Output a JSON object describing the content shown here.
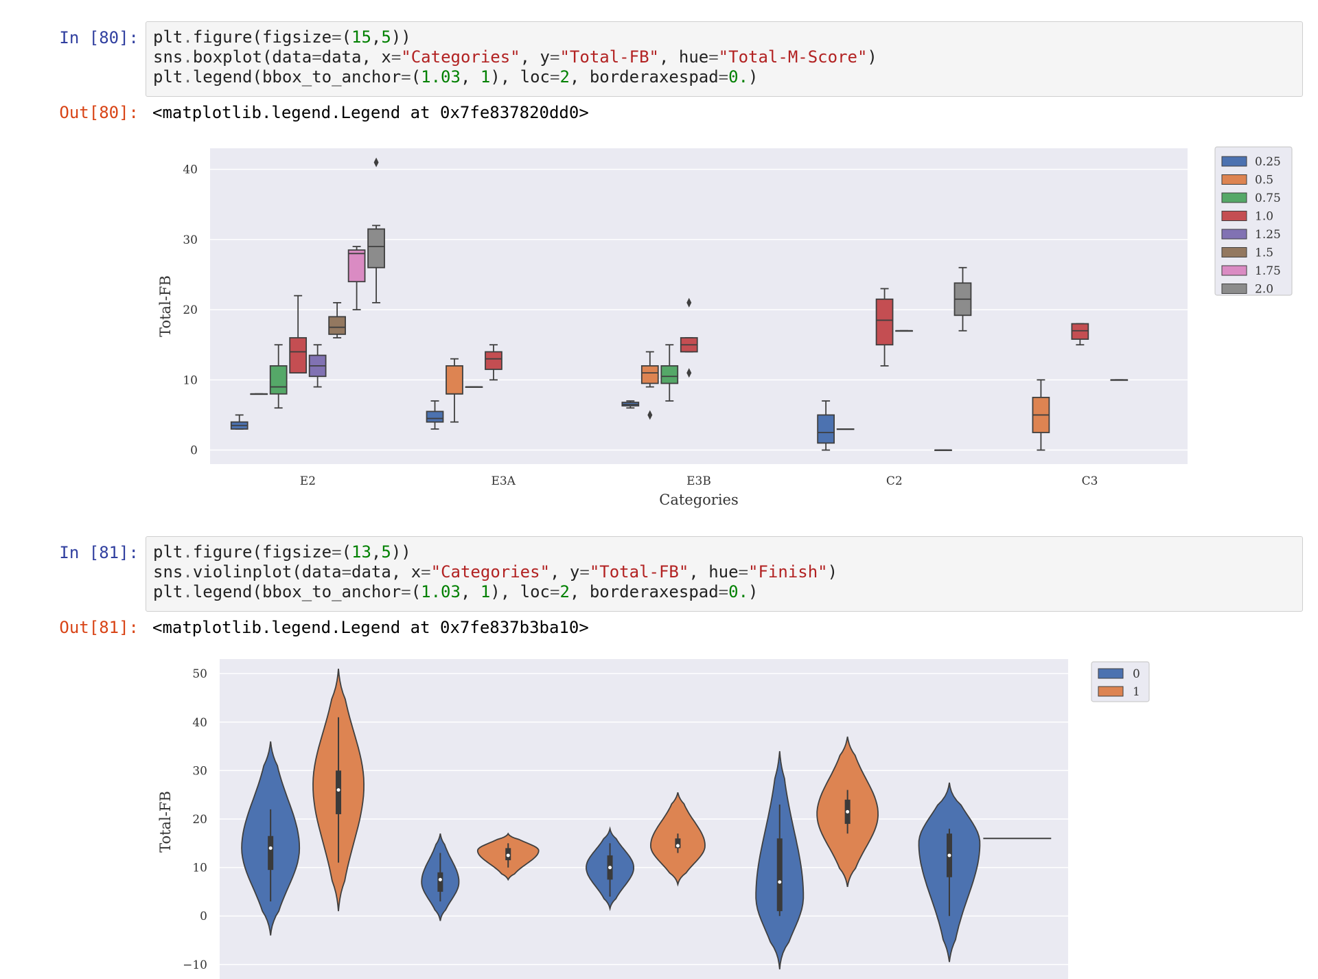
{
  "cells": [
    {
      "in_prompt": "In [80]:",
      "code_lines": [
        [
          [
            "plt",
            "p"
          ],
          [
            ".",
            "o"
          ],
          [
            "figure(figsize",
            "p"
          ],
          [
            "=",
            "o"
          ],
          [
            "(",
            "p"
          ],
          [
            "15",
            "n"
          ],
          [
            ",",
            "p"
          ],
          [
            "5",
            "n"
          ],
          [
            "))",
            "p"
          ]
        ],
        [
          [
            "sns",
            "p"
          ],
          [
            ".",
            "o"
          ],
          [
            "boxplot(data",
            "p"
          ],
          [
            "=",
            "o"
          ],
          [
            "data, x",
            "p"
          ],
          [
            "=",
            "o"
          ],
          [
            "\"Categories\"",
            "s"
          ],
          [
            ", y",
            "p"
          ],
          [
            "=",
            "o"
          ],
          [
            "\"Total-FB\"",
            "s"
          ],
          [
            ", hue",
            "p"
          ],
          [
            "=",
            "o"
          ],
          [
            "\"Total-M-Score\"",
            "s"
          ],
          [
            ")",
            "p"
          ]
        ],
        [
          [
            "plt",
            "p"
          ],
          [
            ".",
            "o"
          ],
          [
            "legend(bbox_to_anchor",
            "p"
          ],
          [
            "=",
            "o"
          ],
          [
            "(",
            "p"
          ],
          [
            "1.03",
            "n"
          ],
          [
            ", ",
            "p"
          ],
          [
            "1",
            "n"
          ],
          [
            "), loc",
            "p"
          ],
          [
            "=",
            "o"
          ],
          [
            "2",
            "n"
          ],
          [
            ", borderaxespad",
            "p"
          ],
          [
            "=",
            "o"
          ],
          [
            "0.",
            "n"
          ],
          [
            ")",
            "p"
          ]
        ]
      ],
      "out_prompt": "Out[80]:",
      "out_text": "<matplotlib.legend.Legend at 0x7fe837820dd0>"
    },
    {
      "in_prompt": "In [81]:",
      "code_lines": [
        [
          [
            "plt",
            "p"
          ],
          [
            ".",
            "o"
          ],
          [
            "figure(figsize",
            "p"
          ],
          [
            "=",
            "o"
          ],
          [
            "(",
            "p"
          ],
          [
            "13",
            "n"
          ],
          [
            ",",
            "p"
          ],
          [
            "5",
            "n"
          ],
          [
            "))",
            "p"
          ]
        ],
        [
          [
            "sns",
            "p"
          ],
          [
            ".",
            "o"
          ],
          [
            "violinplot(data",
            "p"
          ],
          [
            "=",
            "o"
          ],
          [
            "data, x",
            "p"
          ],
          [
            "=",
            "o"
          ],
          [
            "\"Categories\"",
            "s"
          ],
          [
            ", y",
            "p"
          ],
          [
            "=",
            "o"
          ],
          [
            "\"Total-FB\"",
            "s"
          ],
          [
            ", hue",
            "p"
          ],
          [
            "=",
            "o"
          ],
          [
            "\"Finish\"",
            "s"
          ],
          [
            ")",
            "p"
          ]
        ],
        [
          [
            "plt",
            "p"
          ],
          [
            ".",
            "o"
          ],
          [
            "legend(bbox_to_anchor",
            "p"
          ],
          [
            "=",
            "o"
          ],
          [
            "(",
            "p"
          ],
          [
            "1.03",
            "n"
          ],
          [
            ", ",
            "p"
          ],
          [
            "1",
            "n"
          ],
          [
            "), loc",
            "p"
          ],
          [
            "=",
            "o"
          ],
          [
            "2",
            "n"
          ],
          [
            ", borderaxespad",
            "p"
          ],
          [
            "=",
            "o"
          ],
          [
            "0.",
            "n"
          ],
          [
            ")",
            "p"
          ]
        ]
      ],
      "out_prompt": "Out[81]:",
      "out_text": "<matplotlib.legend.Legend at 0x7fe837b3ba10>"
    }
  ],
  "colors": {
    "axes_bg": "#eaeaf2",
    "grid": "#ffffff",
    "edge": "#3f3f3f"
  },
  "chart_data": [
    {
      "type": "box",
      "xlabel": "Categories",
      "ylabel": "Total-FB",
      "ylim": [
        -2,
        43
      ],
      "yticks": [
        0,
        10,
        20,
        30,
        40
      ],
      "categories": [
        "E2",
        "E3A",
        "E3B",
        "C2",
        "C3"
      ],
      "legend_placement": "outside-top-right",
      "grid": true,
      "series": [
        {
          "name": "0.25",
          "color": "#4c72b0",
          "boxes": [
            {
              "cat": "E2",
              "min": 3,
              "q1": 3,
              "median": 3.5,
              "q3": 4,
              "max": 5,
              "outliers": []
            },
            {
              "cat": "E3A",
              "min": 3,
              "q1": 4,
              "median": 4.5,
              "q3": 5.5,
              "max": 7,
              "outliers": []
            },
            {
              "cat": "E3B",
              "min": 6,
              "q1": 6.3,
              "median": 6.5,
              "q3": 6.8,
              "max": 7,
              "outliers": []
            },
            {
              "cat": "C2",
              "min": 0,
              "q1": 1,
              "median": 2.5,
              "q3": 5,
              "max": 7,
              "outliers": []
            }
          ]
        },
        {
          "name": "0.5",
          "color": "#dd8452",
          "boxes": [
            {
              "cat": "E2",
              "min": 8,
              "q1": 8,
              "median": 8,
              "q3": 8,
              "max": 8,
              "outliers": []
            },
            {
              "cat": "E3A",
              "min": 4,
              "q1": 8,
              "median": 8,
              "q3": 12,
              "max": 13,
              "outliers": []
            },
            {
              "cat": "E3B",
              "min": 9,
              "q1": 9.5,
              "median": 11,
              "q3": 12,
              "max": 14,
              "outliers": [
                5
              ]
            },
            {
              "cat": "C2",
              "min": 3,
              "q1": 3,
              "median": 3,
              "q3": 3,
              "max": 3,
              "outliers": []
            },
            {
              "cat": "C3",
              "min": 0,
              "q1": 2.5,
              "median": 5,
              "q3": 7.5,
              "max": 10,
              "outliers": []
            }
          ]
        },
        {
          "name": "0.75",
          "color": "#55a868",
          "boxes": [
            {
              "cat": "E2",
              "min": 6,
              "q1": 8,
              "median": 9,
              "q3": 12,
              "max": 15,
              "outliers": []
            },
            {
              "cat": "E3A",
              "min": 9,
              "q1": 9,
              "median": 9,
              "q3": 9,
              "max": 9,
              "outliers": []
            },
            {
              "cat": "E3B",
              "min": 7,
              "q1": 9.5,
              "median": 10.5,
              "q3": 12,
              "max": 15,
              "outliers": []
            }
          ]
        },
        {
          "name": "1.0",
          "color": "#c44e52",
          "boxes": [
            {
              "cat": "E2",
              "min": 11,
              "q1": 11,
              "median": 14,
              "q3": 16,
              "max": 22,
              "outliers": []
            },
            {
              "cat": "E3A",
              "min": 10,
              "q1": 11.5,
              "median": 13,
              "q3": 14,
              "max": 15,
              "outliers": []
            },
            {
              "cat": "E3B",
              "min": 14,
              "q1": 14,
              "median": 15,
              "q3": 16,
              "max": 16,
              "outliers": [
                11,
                21
              ]
            },
            {
              "cat": "C2",
              "min": 12,
              "q1": 15,
              "median": 18.5,
              "q3": 21.5,
              "max": 23,
              "outliers": []
            },
            {
              "cat": "C3",
              "min": 15,
              "q1": 15.8,
              "median": 17,
              "q3": 18,
              "max": 18,
              "outliers": []
            }
          ]
        },
        {
          "name": "1.25",
          "color": "#8172b3",
          "boxes": [
            {
              "cat": "E2",
              "min": 9,
              "q1": 10.5,
              "median": 12,
              "q3": 13.5,
              "max": 15,
              "outliers": []
            },
            {
              "cat": "C2",
              "min": 17,
              "q1": 17,
              "median": 17,
              "q3": 17,
              "max": 17,
              "outliers": []
            }
          ]
        },
        {
          "name": "1.5",
          "color": "#937860",
          "boxes": [
            {
              "cat": "E2",
              "min": 16,
              "q1": 16.5,
              "median": 17.5,
              "q3": 19,
              "max": 21,
              "outliers": []
            },
            {
              "cat": "C3",
              "min": 10,
              "q1": 10,
              "median": 10,
              "q3": 10,
              "max": 10,
              "outliers": []
            }
          ]
        },
        {
          "name": "1.75",
          "color": "#da8bc3",
          "boxes": [
            {
              "cat": "E2",
              "min": 20,
              "q1": 24,
              "median": 28,
              "q3": 28.5,
              "max": 29,
              "outliers": []
            },
            {
              "cat": "C2",
              "min": 0,
              "q1": 0,
              "median": 0,
              "q3": 0,
              "max": 0,
              "outliers": []
            }
          ]
        },
        {
          "name": "2.0",
          "color": "#8c8c8c",
          "boxes": [
            {
              "cat": "E2",
              "min": 21,
              "q1": 26,
              "median": 29,
              "q3": 31.5,
              "max": 32,
              "outliers": [
                41
              ]
            },
            {
              "cat": "C2",
              "min": 17,
              "q1": 19.2,
              "median": 21.5,
              "q3": 23.8,
              "max": 26,
              "outliers": []
            }
          ]
        }
      ]
    },
    {
      "type": "violin",
      "xlabel": "",
      "ylabel": "Total-FB",
      "ylim": [
        -13,
        53
      ],
      "yticks": [
        -10,
        0,
        10,
        20,
        30,
        40,
        50
      ],
      "categories_count": 5,
      "legend_placement": "outside-top-right",
      "grid": true,
      "series": [
        {
          "name": "0",
          "color": "#4c72b0",
          "violins": [
            {
              "slot": 0,
              "min": -4,
              "max": 36,
              "q1": 9.5,
              "median": 14,
              "q3": 16.5,
              "whisker_low": 3,
              "whisker_high": 22,
              "peak": 14,
              "width": 0.85
            },
            {
              "slot": 1,
              "min": -1,
              "max": 17,
              "q1": 5,
              "median": 7.5,
              "q3": 9,
              "whisker_low": 3,
              "whisker_high": 13,
              "peak": 7,
              "width": 0.55
            },
            {
              "slot": 2,
              "min": 1.5,
              "max": 18,
              "q1": 7.5,
              "median": 10,
              "q3": 12.5,
              "whisker_low": 4,
              "whisker_high": 15,
              "peak": 10,
              "width": 0.7
            },
            {
              "slot": 3,
              "min": -11,
              "max": 34,
              "q1": 1,
              "median": 7,
              "q3": 16,
              "whisker_low": 0,
              "whisker_high": 23,
              "peak": 4,
              "width": 0.7
            },
            {
              "slot": 4,
              "min": -9.5,
              "max": 27.5,
              "q1": 8,
              "median": 12.5,
              "q3": 17,
              "whisker_low": 0,
              "whisker_high": 18,
              "peak": 15,
              "width": 0.9
            }
          ]
        },
        {
          "name": "1",
          "color": "#dd8452",
          "violins": [
            {
              "slot": 0,
              "min": 1,
              "max": 51,
              "q1": 21,
              "median": 26,
              "q3": 30,
              "whisker_low": 11,
              "whisker_high": 41,
              "peak": 27,
              "width": 0.75
            },
            {
              "slot": 1,
              "min": 7.5,
              "max": 17,
              "q1": 11.5,
              "median": 12.5,
              "q3": 14,
              "whisker_low": 10,
              "whisker_high": 15,
              "peak": 13.5,
              "width": 0.9
            },
            {
              "slot": 2,
              "min": 6.5,
              "max": 25.5,
              "q1": 14,
              "median": 14.5,
              "q3": 16,
              "whisker_low": 13,
              "whisker_high": 17,
              "peak": 14.5,
              "width": 0.8
            },
            {
              "slot": 3,
              "min": 6,
              "max": 37,
              "q1": 19,
              "median": 21.5,
              "q3": 24,
              "whisker_low": 17,
              "whisker_high": 26,
              "peak": 21,
              "width": 0.9
            },
            {
              "slot": 4,
              "min": 16,
              "max": 16,
              "q1": 16,
              "median": 16,
              "q3": 16,
              "whisker_low": 16,
              "whisker_high": 16,
              "peak": 16,
              "width": 1.0
            }
          ]
        }
      ]
    }
  ]
}
